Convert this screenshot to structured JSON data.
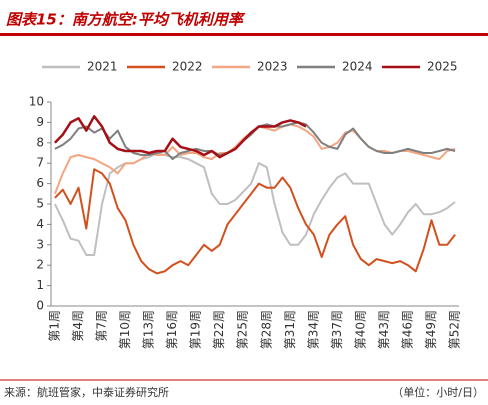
{
  "chart_data": {
    "type": "line",
    "title": "图表15：南方航空:平均飞机利用率",
    "source": "来源：航班管家，中泰证券研究所",
    "unit": "（单位：小时/日）",
    "categories": [
      "第1周",
      null,
      null,
      "第4周",
      null,
      null,
      "第7周",
      null,
      null,
      "第10周",
      null,
      null,
      "第13周",
      null,
      null,
      "第16周",
      null,
      null,
      "第19周",
      null,
      null,
      "第22周",
      null,
      null,
      "第25周",
      null,
      null,
      "第28周",
      null,
      null,
      "第31周",
      null,
      null,
      "第34周",
      null,
      null,
      "第37周",
      null,
      null,
      "第40周",
      null,
      null,
      "第43周",
      null,
      null,
      "第46周",
      null,
      null,
      "第49周",
      null,
      null,
      "第52周"
    ],
    "ylim": [
      0,
      10
    ],
    "yticks": [
      0,
      1,
      2,
      3,
      4,
      5,
      6,
      7,
      8,
      9,
      10
    ],
    "series": [
      {
        "name": "2021",
        "color": "#bfbfbf",
        "values": [
          5.0,
          4.2,
          3.3,
          3.2,
          2.5,
          2.5,
          5.0,
          6.5,
          6.8,
          7.0,
          7.0,
          7.2,
          7.3,
          7.5,
          7.4,
          7.3,
          7.3,
          7.2,
          7.0,
          6.8,
          5.5,
          5.0,
          5.0,
          5.2,
          5.6,
          6.0,
          7.0,
          6.8,
          5.0,
          3.6,
          3.0,
          3.0,
          3.5,
          4.5,
          5.2,
          5.8,
          6.3,
          6.5,
          6.0,
          6.0,
          6.0,
          5.0,
          4.0,
          3.5,
          4.0,
          4.6,
          5.0,
          4.5,
          4.5,
          4.6,
          4.8,
          5.1
        ]
      },
      {
        "name": "2022",
        "color": "#d2501e",
        "values": [
          5.3,
          5.7,
          5.0,
          5.8,
          3.8,
          6.7,
          6.5,
          6.0,
          4.8,
          4.2,
          3.0,
          2.2,
          1.8,
          1.6,
          1.7,
          2.0,
          2.2,
          2.0,
          2.5,
          3.0,
          2.7,
          3.0,
          4.0,
          4.5,
          5.0,
          5.5,
          6.0,
          5.8,
          5.8,
          6.3,
          5.8,
          4.8,
          4.0,
          3.5,
          2.4,
          3.5,
          4.0,
          4.4,
          3.0,
          2.3,
          2.0,
          2.3,
          2.2,
          2.1,
          2.2,
          2.0,
          1.7,
          2.8,
          4.2,
          3.0,
          3.0,
          3.5
        ]
      },
      {
        "name": "2023",
        "color": "#f4a582",
        "values": [
          5.5,
          6.5,
          7.3,
          7.4,
          7.3,
          7.2,
          7.0,
          6.8,
          6.5,
          7.0,
          7.0,
          7.2,
          7.5,
          7.4,
          7.4,
          7.8,
          7.4,
          7.5,
          7.5,
          7.3,
          7.2,
          7.5,
          7.5,
          7.8,
          8.2,
          8.5,
          8.8,
          8.7,
          8.6,
          8.8,
          8.9,
          8.8,
          8.6,
          8.3,
          7.7,
          7.8,
          8.0,
          8.5,
          8.6,
          8.2,
          7.8,
          7.6,
          7.6,
          7.5,
          7.6,
          7.6,
          7.5,
          7.4,
          7.3,
          7.2,
          7.6,
          7.7
        ]
      },
      {
        "name": "2024",
        "color": "#7f7f7f",
        "values": [
          7.7,
          7.9,
          8.2,
          8.7,
          8.8,
          8.5,
          8.7,
          8.2,
          8.6,
          7.8,
          7.5,
          7.4,
          7.4,
          7.5,
          7.6,
          7.2,
          7.5,
          7.6,
          7.7,
          7.6,
          7.6,
          7.4,
          7.5,
          7.7,
          8.1,
          8.4,
          8.8,
          8.9,
          8.8,
          8.8,
          8.9,
          9.0,
          8.9,
          8.5,
          8.0,
          7.8,
          7.7,
          8.4,
          8.7,
          8.2,
          7.8,
          7.6,
          7.5,
          7.5,
          7.6,
          7.7,
          7.6,
          7.5,
          7.5,
          7.6,
          7.7,
          7.6
        ]
      },
      {
        "name": "2025",
        "color": "#a50f15",
        "values": [
          8.0,
          8.4,
          9.0,
          9.2,
          8.6,
          9.3,
          8.8,
          8.0,
          7.7,
          7.6,
          7.6,
          7.6,
          7.5,
          7.6,
          7.6,
          8.2,
          7.8,
          7.7,
          7.6,
          7.4,
          7.6,
          7.3,
          7.5,
          7.7,
          8.1,
          8.5,
          8.8,
          8.8,
          8.8,
          9.0,
          9.1,
          9.0,
          8.8,
          null,
          null,
          null,
          null,
          null,
          null,
          null,
          null,
          null,
          null,
          null,
          null,
          null,
          null,
          null,
          null,
          null,
          null,
          null
        ]
      }
    ]
  }
}
